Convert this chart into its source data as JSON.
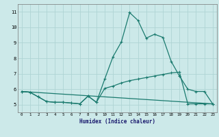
{
  "xlabel": "Humidex (Indice chaleur)",
  "background_color": "#cce9e9",
  "grid_color": "#afd4d4",
  "line_color": "#1a7a6e",
  "xlim": [
    -0.5,
    23.5
  ],
  "ylim": [
    4.5,
    11.5
  ],
  "xticks": [
    0,
    1,
    2,
    3,
    4,
    5,
    6,
    7,
    8,
    9,
    10,
    11,
    12,
    13,
    14,
    15,
    16,
    17,
    18,
    19,
    20,
    21,
    22,
    23
  ],
  "yticks": [
    5,
    6,
    7,
    8,
    9,
    10,
    11
  ],
  "line1_x": [
    0,
    1,
    2,
    3,
    4,
    5,
    6,
    7,
    8,
    9,
    10,
    11,
    12,
    13,
    14,
    15,
    16,
    17,
    18,
    19,
    20,
    21,
    22,
    23
  ],
  "line1_y": [
    5.85,
    5.8,
    5.5,
    5.2,
    5.15,
    5.15,
    5.1,
    5.05,
    5.55,
    5.15,
    6.65,
    8.1,
    9.05,
    10.95,
    10.45,
    9.3,
    9.55,
    9.35,
    7.8,
    6.85,
    6.0,
    5.85,
    5.85,
    5.05
  ],
  "line2_x": [
    0,
    1,
    2,
    3,
    4,
    5,
    6,
    7,
    8,
    9,
    10,
    11,
    12,
    13,
    14,
    15,
    16,
    17,
    18,
    19,
    20,
    21,
    22,
    23
  ],
  "line2_y": [
    5.85,
    5.8,
    5.5,
    5.2,
    5.15,
    5.15,
    5.1,
    5.05,
    5.55,
    5.15,
    6.05,
    6.2,
    6.4,
    6.55,
    6.65,
    6.75,
    6.85,
    6.95,
    7.05,
    7.1,
    5.05,
    5.05,
    5.05,
    5.05
  ],
  "line3_x": [
    0,
    23
  ],
  "line3_y": [
    5.85,
    5.05
  ]
}
